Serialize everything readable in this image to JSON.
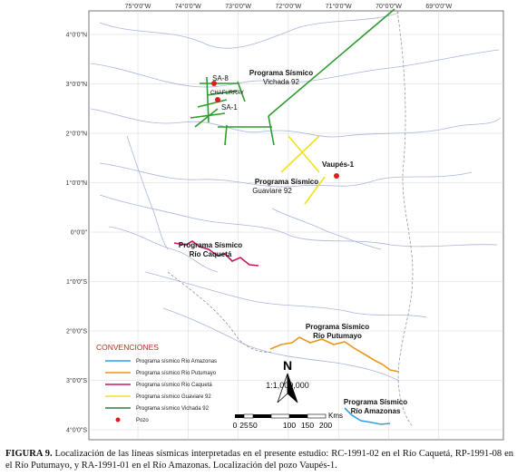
{
  "map": {
    "lon_labels": [
      "75°0'0\"W",
      "74°0'0\"W",
      "73°0'0\"W",
      "72°0'0\"W",
      "71°0'0\"W",
      "70°0'0\"W",
      "69°0'0\"W"
    ],
    "lat_labels": [
      "4°0'0\"N",
      "3°0'0\"N",
      "2°0'0\"N",
      "1°0'0\"N",
      "0°0'0\"",
      "1°0'0\"S",
      "2°0'0\"S",
      "3°0'0\"S",
      "4°0'0\"S"
    ],
    "wells": {
      "sa8": "SA-8",
      "chafurray": "CHAFURRAY",
      "sa1": "SA-1",
      "vaupes": "Vaupés-1"
    },
    "programs": {
      "vichada": [
        "Programa Sísmico",
        "Vichada 92"
      ],
      "guaviare": [
        "Programa Sísmico",
        "Guaviare 92"
      ],
      "caqueta": [
        "Programa Sísmico",
        "Río Caquetá"
      ],
      "putumayo": [
        "Programa Sísmico",
        "Río Putumayo"
      ],
      "amazonas": [
        "Programa Sísmico",
        "Río Amazonas"
      ]
    },
    "legend": {
      "title": "CONVENCIONES",
      "entries": [
        "Programa sísmico Río Amazonas",
        "Programa sísmico Río Putumayo",
        "Programa sísmico Río Caquetá",
        "Programa sísmico Guaviare 92",
        "Programa sísmico Vichada 92",
        "Pozo"
      ]
    },
    "north": "N",
    "scale": {
      "ratio": "1:1,000,000",
      "labels": [
        "0",
        "25",
        "50",
        "100",
        "150",
        "200"
      ],
      "unit": "Kms"
    }
  },
  "caption": {
    "label": "FIGURA 9.",
    "text": "Localización de las líneas sísmicas interpretadas en el presente estudio: RC-1991-02 en el Río Caquetá, RP-1991-08 en el Río Putumayo, y RA-1991-01 en el Río Amazonas. Localización del pozo Vaupés-1."
  }
}
